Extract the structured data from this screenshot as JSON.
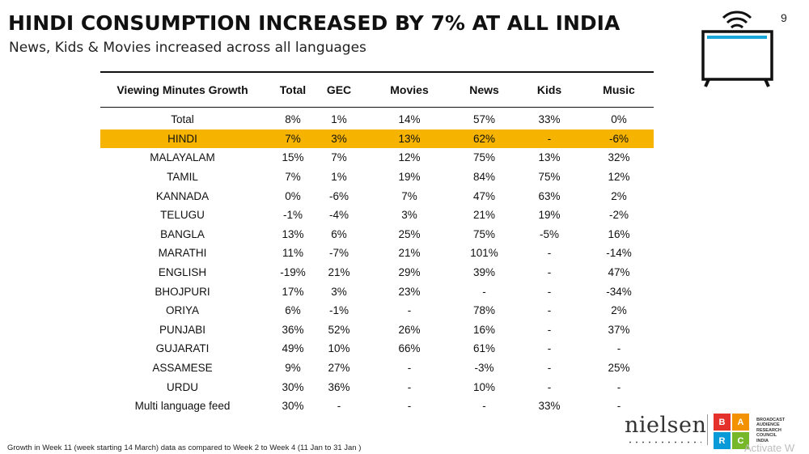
{
  "header": {
    "title": "HINDI CONSUMPTION INCREASED BY 7% AT ALL INDIA",
    "subtitle": "News, Kids & Movies increased across all languages",
    "page_number": "9"
  },
  "table": {
    "columns": [
      "Viewing Minutes Growth",
      "Total",
      "GEC",
      "Movies",
      "News",
      "Kids",
      "Music"
    ],
    "highlight_color": "#f6b400",
    "rows": [
      {
        "cells": [
          "Total",
          "8%",
          "1%",
          "14%",
          "57%",
          "33%",
          "0%"
        ]
      },
      {
        "cells": [
          "HINDI",
          "7%",
          "3%",
          "13%",
          "62%",
          "-",
          "-6%"
        ],
        "highlight": true
      },
      {
        "cells": [
          "MALAYALAM",
          "15%",
          "7%",
          "12%",
          "75%",
          "13%",
          "32%"
        ]
      },
      {
        "cells": [
          "TAMIL",
          "7%",
          "1%",
          "19%",
          "84%",
          "75%",
          "12%"
        ]
      },
      {
        "cells": [
          "KANNADA",
          "0%",
          "-6%",
          "7%",
          "47%",
          "63%",
          "2%"
        ]
      },
      {
        "cells": [
          "TELUGU",
          "-1%",
          "-4%",
          "3%",
          "21%",
          "19%",
          "-2%"
        ]
      },
      {
        "cells": [
          "BANGLA",
          "13%",
          "6%",
          "25%",
          "75%",
          "-5%",
          "16%"
        ]
      },
      {
        "cells": [
          "MARATHI",
          "11%",
          "-7%",
          "21%",
          "101%",
          "-",
          "-14%"
        ]
      },
      {
        "cells": [
          "ENGLISH",
          "-19%",
          "21%",
          "29%",
          "39%",
          "-",
          "47%"
        ]
      },
      {
        "cells": [
          "BHOJPURI",
          "17%",
          "3%",
          "23%",
          "-",
          "-",
          "-34%"
        ]
      },
      {
        "cells": [
          "ORIYA",
          "6%",
          "-1%",
          "-",
          "78%",
          "-",
          "2%"
        ]
      },
      {
        "cells": [
          "PUNJABI",
          "36%",
          "52%",
          "26%",
          "16%",
          "-",
          "37%"
        ]
      },
      {
        "cells": [
          "GUJARATI",
          "49%",
          "10%",
          "66%",
          "61%",
          "-",
          "-"
        ]
      },
      {
        "cells": [
          "ASSAMESE",
          "9%",
          "27%",
          "-",
          "-3%",
          "-",
          "25%"
        ]
      },
      {
        "cells": [
          "URDU",
          "30%",
          "36%",
          "-",
          "10%",
          "-",
          "-"
        ]
      },
      {
        "cells": [
          "Multi language feed",
          "30%",
          "-",
          "-",
          "-",
          "33%",
          "-"
        ]
      }
    ]
  },
  "footer": {
    "note": "Growth in Week 11 (week starting 14 March) data as compared to Week 2 to Week 4 (11 Jan to 31 Jan )",
    "nielsen_logo": "nielsen",
    "barc_letters": [
      "B",
      "A",
      "R",
      "C"
    ],
    "barc_colors": [
      "#e4312b",
      "#f39200",
      "#0a9ad7",
      "#76b82a"
    ],
    "barc_text": [
      "BROADCAST",
      "AUDIENCE",
      "RESEARCH",
      "COUNCIL",
      "INDIA"
    ],
    "watermark": "Activate W"
  }
}
